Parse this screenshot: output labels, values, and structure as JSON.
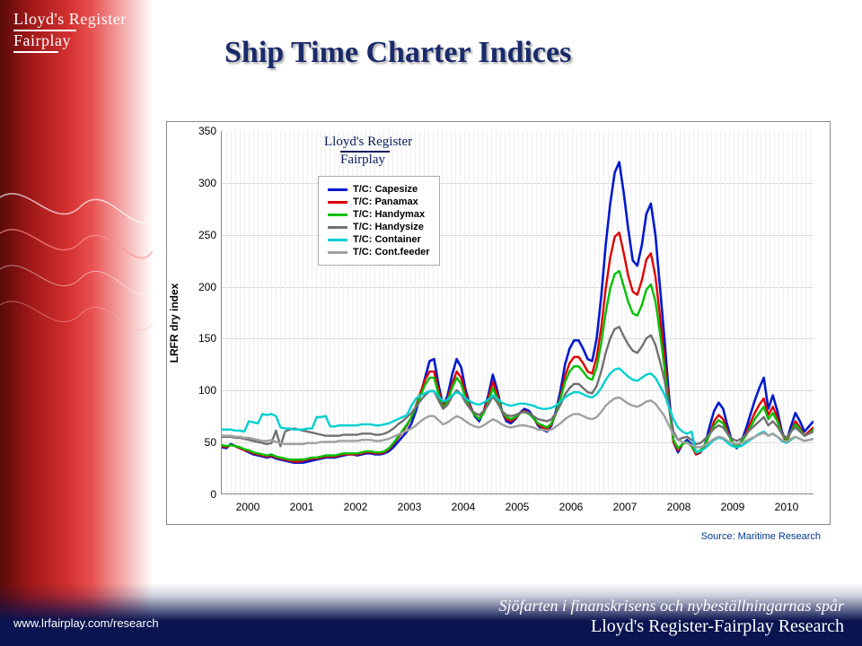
{
  "title": "Ship Time Charter Indices",
  "logo": {
    "line1": "Lloyd's Register",
    "line2": "Fairplay"
  },
  "chart_logo": {
    "line1": "Lloyd's Register",
    "line2": "Fairplay"
  },
  "footer": {
    "url": "www.lrfairplay.com/research",
    "line1": "Sjöfarten i finanskrisens och nybeställningarnas spår",
    "line2": "Lloyd's Register-Fairplay Research"
  },
  "chart": {
    "type": "line",
    "ylabel": "LRFR dry index",
    "ylim": [
      0,
      350
    ],
    "ytick_step": 50,
    "yticks": [
      0,
      50,
      100,
      150,
      200,
      250,
      300,
      350
    ],
    "xticks": [
      "2000",
      "2001",
      "2002",
      "2003",
      "2004",
      "2005",
      "2006",
      "2007",
      "2008",
      "2009",
      "2010"
    ],
    "x_range_units": 132,
    "grid_color": "#d8d8d8",
    "background_color": "#ffffff",
    "border_color": "#888888",
    "source": "Source: Maritime Research",
    "label_fontsize": 12,
    "tick_fontsize": 12,
    "line_width": 2.4,
    "legend": {
      "position": "upper-left",
      "fontsize": 11,
      "item_color": "#000000"
    },
    "series": [
      {
        "name": "T/C: Capesize",
        "color": "#0018d0",
        "width": 2.6,
        "data": [
          45,
          44,
          48,
          46,
          44,
          42,
          40,
          38,
          37,
          36,
          35,
          36,
          34,
          33,
          32,
          31,
          30,
          30,
          30,
          31,
          32,
          33,
          34,
          35,
          35,
          35,
          36,
          37,
          38,
          38,
          37,
          38,
          39,
          39,
          38,
          38,
          39,
          41,
          45,
          50,
          55,
          60,
          68,
          80,
          96,
          112,
          128,
          130,
          105,
          85,
          95,
          115,
          130,
          122,
          100,
          85,
          75,
          70,
          80,
          95,
          115,
          100,
          80,
          70,
          68,
          72,
          78,
          82,
          80,
          74,
          66,
          62,
          60,
          66,
          80,
          100,
          125,
          140,
          148,
          148,
          140,
          130,
          128,
          150,
          190,
          240,
          280,
          310,
          320,
          290,
          255,
          225,
          220,
          240,
          270,
          280,
          250,
          200,
          150,
          95,
          50,
          40,
          48,
          52,
          48,
          38,
          40,
          48,
          65,
          80,
          88,
          82,
          65,
          50,
          44,
          50,
          62,
          76,
          90,
          102,
          112,
          82,
          95,
          80,
          60,
          50,
          65,
          78,
          70,
          60,
          65,
          70
        ]
      },
      {
        "name": "T/C: Panamax",
        "color": "#e00000",
        "width": 2.4,
        "data": [
          46,
          45,
          47,
          46,
          44,
          42,
          41,
          39,
          38,
          37,
          36,
          37,
          35,
          34,
          33,
          32,
          31,
          31,
          32,
          33,
          34,
          34,
          35,
          36,
          36,
          36,
          37,
          38,
          38,
          38,
          38,
          39,
          40,
          40,
          39,
          39,
          40,
          43,
          48,
          54,
          60,
          66,
          74,
          85,
          98,
          110,
          118,
          118,
          100,
          84,
          92,
          106,
          118,
          112,
          96,
          84,
          76,
          72,
          80,
          92,
          108,
          96,
          80,
          72,
          70,
          73,
          78,
          80,
          78,
          73,
          67,
          64,
          62,
          67,
          78,
          94,
          114,
          126,
          132,
          132,
          126,
          118,
          116,
          132,
          160,
          198,
          228,
          248,
          252,
          232,
          210,
          195,
          192,
          206,
          226,
          232,
          210,
          172,
          132,
          88,
          50,
          42,
          48,
          50,
          46,
          38,
          40,
          46,
          58,
          70,
          76,
          72,
          60,
          50,
          45,
          50,
          58,
          68,
          78,
          86,
          92,
          76,
          84,
          74,
          58,
          50,
          60,
          70,
          64,
          56,
          60,
          64
        ]
      },
      {
        "name": "T/C: Handymax",
        "color": "#00c000",
        "width": 2.4,
        "data": [
          47,
          46,
          47,
          46,
          45,
          43,
          42,
          40,
          39,
          38,
          37,
          38,
          36,
          35,
          34,
          33,
          33,
          33,
          33,
          34,
          35,
          35,
          36,
          37,
          37,
          37,
          38,
          39,
          39,
          39,
          39,
          40,
          41,
          41,
          40,
          40,
          41,
          44,
          49,
          55,
          61,
          67,
          74,
          84,
          95,
          105,
          112,
          112,
          96,
          82,
          90,
          102,
          112,
          106,
          92,
          82,
          76,
          72,
          78,
          88,
          102,
          92,
          80,
          74,
          72,
          74,
          78,
          79,
          77,
          73,
          68,
          66,
          64,
          68,
          78,
          92,
          108,
          118,
          123,
          123,
          118,
          112,
          110,
          122,
          145,
          175,
          198,
          212,
          215,
          200,
          185,
          174,
          172,
          182,
          197,
          202,
          186,
          156,
          122,
          84,
          52,
          44,
          48,
          50,
          46,
          40,
          42,
          48,
          57,
          66,
          71,
          68,
          58,
          50,
          46,
          50,
          56,
          64,
          72,
          78,
          84,
          72,
          78,
          70,
          58,
          52,
          60,
          67,
          62,
          56,
          58,
          62
        ]
      },
      {
        "name": "T/C: Handysize",
        "color": "#707070",
        "width": 2.4,
        "data": [
          55,
          55,
          55,
          54,
          54,
          53,
          52,
          51,
          50,
          49,
          48,
          49,
          61,
          46,
          60,
          62,
          63,
          62,
          61,
          60,
          59,
          58,
          57,
          56,
          56,
          56,
          56,
          57,
          57,
          57,
          57,
          58,
          58,
          58,
          57,
          57,
          58,
          60,
          63,
          67,
          70,
          74,
          78,
          84,
          90,
          95,
          99,
          99,
          90,
          82,
          86,
          94,
          100,
          96,
          88,
          82,
          78,
          76,
          80,
          86,
          94,
          88,
          80,
          76,
          75,
          76,
          78,
          79,
          78,
          75,
          72,
          71,
          70,
          72,
          78,
          86,
          96,
          102,
          106,
          106,
          102,
          98,
          97,
          104,
          118,
          136,
          150,
          159,
          161,
          152,
          144,
          138,
          136,
          142,
          150,
          153,
          144,
          128,
          110,
          84,
          60,
          52,
          54,
          55,
          52,
          48,
          49,
          53,
          58,
          63,
          66,
          64,
          58,
          53,
          51,
          53,
          57,
          62,
          66,
          70,
          74,
          66,
          70,
          65,
          58,
          54,
          60,
          64,
          60,
          56,
          58,
          60
        ]
      },
      {
        "name": "T/C: Container",
        "color": "#00d0d0",
        "width": 2.4,
        "data": [
          62,
          62,
          62,
          61,
          61,
          60,
          70,
          69,
          68,
          77,
          76,
          77,
          75,
          64,
          63,
          63,
          62,
          62,
          62,
          63,
          63,
          74,
          74,
          75,
          65,
          65,
          66,
          66,
          66,
          66,
          66,
          67,
          67,
          67,
          66,
          66,
          67,
          68,
          70,
          72,
          74,
          76,
          85,
          92,
          95,
          97,
          99,
          99,
          94,
          89,
          91,
          95,
          98,
          96,
          92,
          89,
          87,
          86,
          88,
          91,
          95,
          92,
          88,
          86,
          85,
          86,
          87,
          87,
          86,
          85,
          83,
          82,
          82,
          83,
          85,
          89,
          93,
          96,
          98,
          98,
          96,
          94,
          93,
          96,
          102,
          110,
          116,
          120,
          121,
          117,
          113,
          110,
          109,
          112,
          115,
          116,
          112,
          104,
          96,
          84,
          72,
          64,
          60,
          58,
          60,
          40,
          41,
          44,
          48,
          52,
          54,
          53,
          49,
          46,
          45,
          46,
          49,
          52,
          55,
          58,
          60,
          56,
          58,
          55,
          51,
          49,
          52,
          55,
          53,
          51,
          52,
          53
        ]
      },
      {
        "name": "T/C: Cont.feeder",
        "color": "#a0a0a0",
        "width": 2.4,
        "data": [
          56,
          56,
          56,
          55,
          55,
          54,
          54,
          53,
          52,
          51,
          51,
          52,
          50,
          49,
          48,
          48,
          48,
          48,
          48,
          49,
          49,
          49,
          50,
          50,
          50,
          50,
          51,
          51,
          51,
          51,
          51,
          52,
          52,
          52,
          51,
          51,
          52,
          53,
          55,
          57,
          59,
          61,
          63,
          66,
          70,
          73,
          75,
          75,
          71,
          67,
          69,
          72,
          75,
          73,
          70,
          67,
          65,
          64,
          66,
          69,
          72,
          70,
          67,
          65,
          64,
          65,
          66,
          66,
          65,
          64,
          62,
          62,
          61,
          62,
          65,
          68,
          72,
          75,
          77,
          77,
          75,
          73,
          72,
          74,
          79,
          85,
          89,
          92,
          93,
          90,
          87,
          85,
          84,
          86,
          89,
          90,
          87,
          81,
          75,
          66,
          57,
          52,
          50,
          49,
          47,
          45,
          45,
          47,
          50,
          53,
          55,
          54,
          51,
          49,
          48,
          49,
          51,
          53,
          55,
          57,
          59,
          56,
          58,
          55,
          52,
          50,
          53,
          55,
          53,
          51,
          52,
          53
        ]
      }
    ]
  }
}
